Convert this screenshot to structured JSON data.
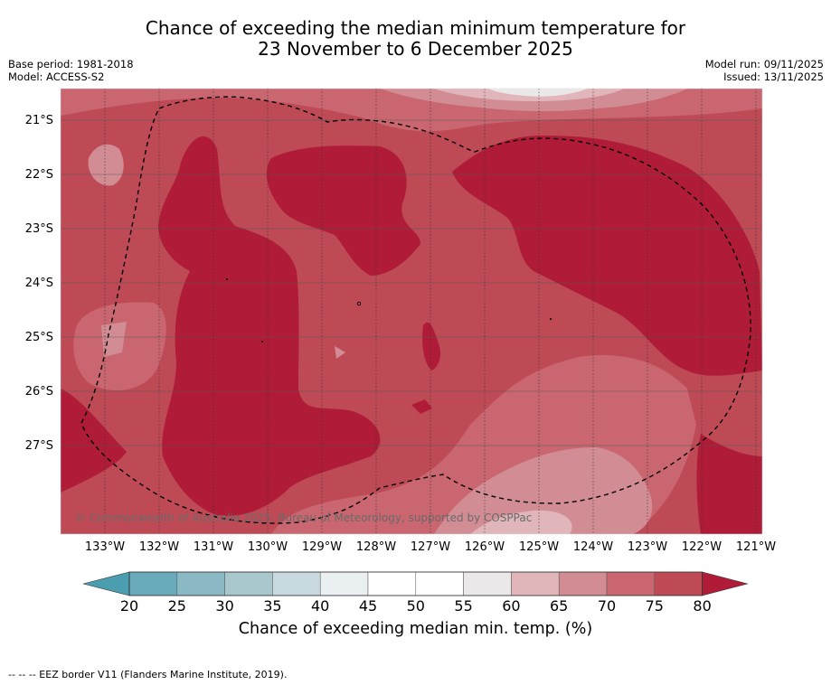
{
  "title": {
    "line1": "Chance of exceeding the median minimum temperature for",
    "line2": "23 November to 6 December 2025"
  },
  "meta": {
    "base_period": "Base period: 1981-2018",
    "model": "Model: ACCESS-S2",
    "model_run": "Model run: 09/11/2025",
    "issued": "Issued: 13/11/2025"
  },
  "map": {
    "latitude_labels": [
      "21°S",
      "22°S",
      "23°S",
      "24°S",
      "25°S",
      "26°S",
      "27°S"
    ],
    "longitude_labels": [
      "133°W",
      "132°W",
      "131°W",
      "130°W",
      "129°W",
      "128°W",
      "127°W",
      "126°W",
      "125°W",
      "124°W",
      "123°W",
      "122°W",
      "121°W"
    ],
    "copyright": "© Commonwealth of Australia 2025, Bureau of Meteorology, supported by COSPPac"
  },
  "colorbar": {
    "ticks": [
      "20",
      "25",
      "30",
      "35",
      "40",
      "45",
      "50",
      "55",
      "60",
      "65",
      "70",
      "75",
      "80"
    ],
    "colors": [
      "#6aabbb",
      "#8ab8c4",
      "#a8c8ce",
      "#c8dadf",
      "#eaf0f2",
      "#ffffff",
      "#ffffff",
      "#ebe8ea",
      "#e0b6bb",
      "#d28c94",
      "#c96670",
      "#be4a56"
    ],
    "under_color": "#4b9db0",
    "over_color": "#b01c38",
    "title": "Chance of exceeding median min. temp. (%)"
  },
  "footnote": "-- -- -- EEZ border V11 (Flanders Marine Institute, 2019)."
}
